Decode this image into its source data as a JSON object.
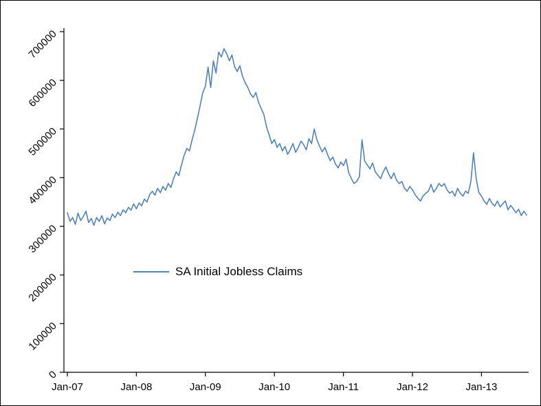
{
  "chart_data": {
    "type": "line",
    "title": "",
    "xlabel": "",
    "ylabel": "",
    "x_start": 2007,
    "points_per_year": 26,
    "x_tick_labels": [
      "Jan-07",
      "Jan-08",
      "Jan-09",
      "Jan-10",
      "Jan-11",
      "Jan-12",
      "Jan-13"
    ],
    "ylim": [
      0,
      700000
    ],
    "ytick_step": 100000,
    "grid": false,
    "legend_position": "inside-left-middle",
    "series": [
      {
        "name": "SA Initial Jobless Claims",
        "color": "#4F81BD",
        "values": [
          328000,
          310000,
          318000,
          304000,
          327000,
          312000,
          320000,
          331000,
          308000,
          316000,
          302000,
          318000,
          310000,
          322000,
          305000,
          317000,
          312000,
          325000,
          318000,
          329000,
          322000,
          334000,
          328000,
          339000,
          333000,
          346000,
          336000,
          348000,
          342000,
          356000,
          350000,
          365000,
          372000,
          364000,
          378000,
          369000,
          382000,
          374000,
          388000,
          380000,
          398000,
          412000,
          404000,
          426000,
          446000,
          460000,
          455000,
          478000,
          498000,
          522000,
          548000,
          574000,
          588000,
          627000,
          585000,
          640000,
          615000,
          658000,
          648000,
          665000,
          655000,
          640000,
          652000,
          628000,
          618000,
          630000,
          608000,
          595000,
          585000,
          572000,
          565000,
          575000,
          555000,
          542000,
          530000,
          505000,
          488000,
          470000,
          478000,
          462000,
          470000,
          455000,
          464000,
          448000,
          458000,
          470000,
          452000,
          462000,
          475000,
          468000,
          457000,
          480000,
          470000,
          500000,
          478000,
          465000,
          453000,
          462000,
          448000,
          435000,
          442000,
          428000,
          420000,
          432000,
          425000,
          438000,
          410000,
          398000,
          388000,
          392000,
          402000,
          478000,
          434000,
          426000,
          418000,
          430000,
          412000,
          405000,
          398000,
          412000,
          422000,
          408000,
          398000,
          410000,
          395000,
          388000,
          392000,
          378000,
          372000,
          382000,
          375000,
          365000,
          358000,
          352000,
          362000,
          368000,
          372000,
          386000,
          370000,
          378000,
          388000,
          382000,
          388000,
          375000,
          368000,
          372000,
          362000,
          378000,
          368000,
          362000,
          372000,
          368000,
          392000,
          451000,
          398000,
          370000,
          362000,
          352000,
          345000,
          357000,
          347000,
          342000,
          352000,
          340000,
          346000,
          352000,
          334000,
          343000,
          336000,
          328000,
          335000,
          322000,
          331000,
          323000
        ]
      }
    ]
  },
  "frame": {
    "background": "#FFFFFF",
    "border_color": "#000000",
    "axis_color": "#000000"
  }
}
